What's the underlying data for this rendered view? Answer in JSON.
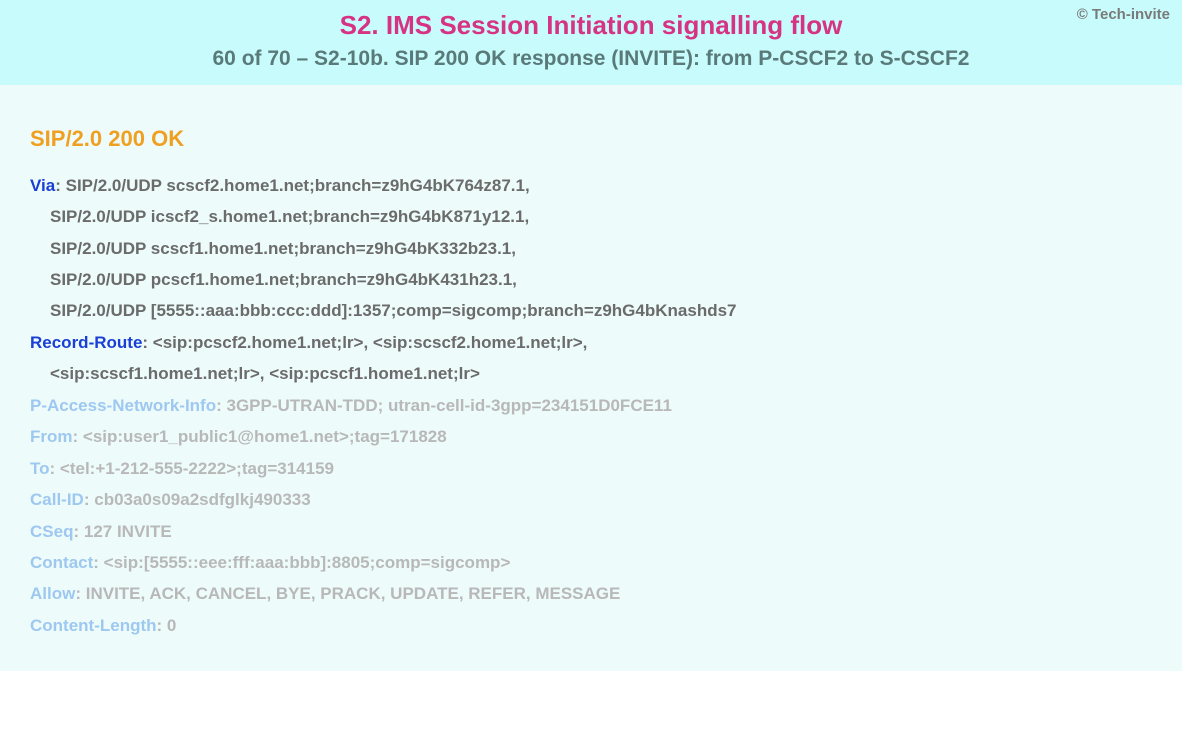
{
  "copyright": "© Tech-invite",
  "header": {
    "title": "S2. IMS Session Initiation signalling flow",
    "subtitle": "60 of 70 – S2-10b. SIP 200 OK response (INVITE): from P-CSCF2 to S-CSCF2"
  },
  "statusLine": "SIP/2.0 200 OK",
  "colors": {
    "headerBg": "#c8fcfc",
    "bodyBg": "#edfbfb",
    "titleMain": "#d63384",
    "titleSub": "#5a7a7a",
    "statusLine": "#f0a020",
    "headerNameEmph": "#1a3fd4",
    "headerNameLight": "#9ec8f0",
    "valueEmph": "#6b6b6b",
    "valueLight": "#b8b8b8",
    "copyright": "#7a7a7a"
  },
  "typography": {
    "titleMainPt": 26,
    "titleSubPt": 21,
    "statusPt": 22,
    "bodyPt": 17,
    "lineHeight": 1.85,
    "fontFamily": "Arial"
  },
  "sipHeaders": [
    {
      "name": "Via",
      "emphasized": true,
      "firstValue": "SIP/2.0/UDP scscf2.home1.net;branch=z9hG4bK764z87.1,",
      "continuations": [
        "SIP/2.0/UDP icscf2_s.home1.net;branch=z9hG4bK871y12.1,",
        "SIP/2.0/UDP scscf1.home1.net;branch=z9hG4bK332b23.1,",
        "SIP/2.0/UDP pcscf1.home1.net;branch=z9hG4bK431h23.1,",
        "SIP/2.0/UDP [5555::aaa:bbb:ccc:ddd]:1357;comp=sigcomp;branch=z9hG4bKnashds7"
      ]
    },
    {
      "name": "Record-Route",
      "emphasized": true,
      "firstValue": "<sip:pcscf2.home1.net;lr>, <sip:scscf2.home1.net;lr>,",
      "continuations": [
        "<sip:scscf1.home1.net;lr>, <sip:pcscf1.home1.net;lr>"
      ]
    },
    {
      "name": "P-Access-Network-Info",
      "emphasized": false,
      "firstValue": "3GPP-UTRAN-TDD; utran-cell-id-3gpp=234151D0FCE11",
      "continuations": []
    },
    {
      "name": "From",
      "emphasized": false,
      "firstValue": "<sip:user1_public1@home1.net>;tag=171828",
      "continuations": []
    },
    {
      "name": "To",
      "emphasized": false,
      "firstValue": "<tel:+1-212-555-2222>;tag=314159",
      "continuations": []
    },
    {
      "name": "Call-ID",
      "emphasized": false,
      "firstValue": "cb03a0s09a2sdfglkj490333",
      "continuations": []
    },
    {
      "name": "CSeq",
      "emphasized": false,
      "firstValue": "127 INVITE",
      "continuations": []
    },
    {
      "name": "Contact",
      "emphasized": false,
      "firstValue": "<sip:[5555::eee:fff:aaa:bbb]:8805;comp=sigcomp>",
      "continuations": []
    },
    {
      "name": "Allow",
      "emphasized": false,
      "firstValue": "INVITE, ACK, CANCEL, BYE, PRACK, UPDATE, REFER, MESSAGE",
      "continuations": []
    },
    {
      "name": "Content-Length",
      "emphasized": false,
      "firstValue": "0",
      "continuations": []
    }
  ]
}
